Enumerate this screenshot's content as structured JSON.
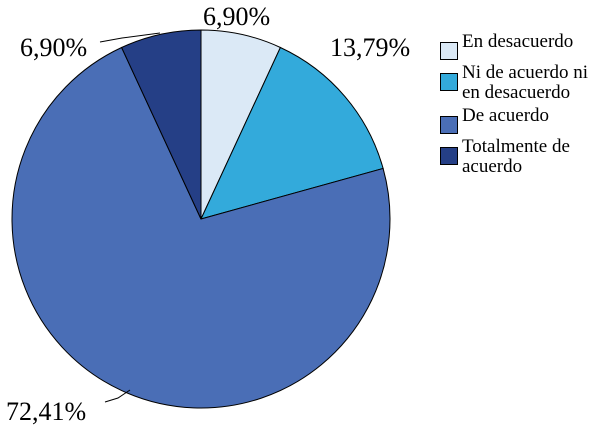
{
  "chart_data": {
    "type": "pie",
    "title": "",
    "slices": [
      {
        "label": "En desacuerdo",
        "value": 6.9,
        "display": "6,90%",
        "color": "#dbe9f6"
      },
      {
        "label": "Ni de acuerdo ni en desacuerdo",
        "value": 13.79,
        "display": "13,79%",
        "color": "#33aadb"
      },
      {
        "label": "De acuerdo",
        "value": 72.41,
        "display": "72,41%",
        "color": "#4a6eb6"
      },
      {
        "label": "Totalmente de acuerdo",
        "value": 6.9,
        "display": "6,90%",
        "color": "#253f86"
      }
    ],
    "start_angle_deg": 0,
    "direction": "clockwise",
    "legend_position": "right"
  }
}
